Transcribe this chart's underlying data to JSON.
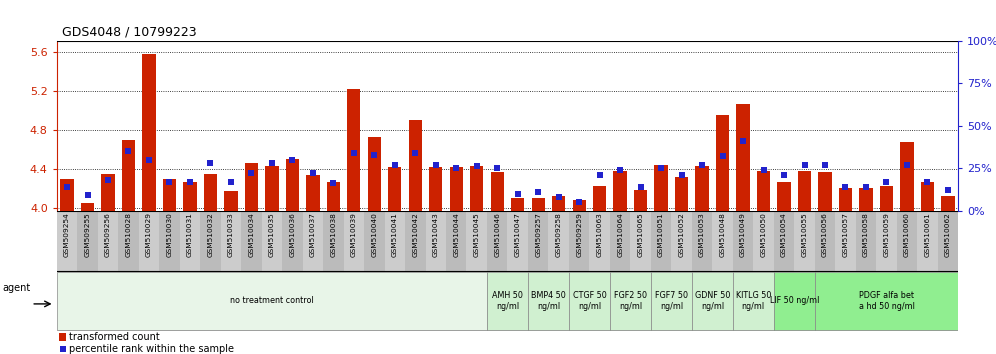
{
  "title": "GDS4048 / 10799223",
  "samples": [
    "GSM509254",
    "GSM509255",
    "GSM509256",
    "GSM510028",
    "GSM510029",
    "GSM510030",
    "GSM510031",
    "GSM510032",
    "GSM510033",
    "GSM510034",
    "GSM510035",
    "GSM510036",
    "GSM510037",
    "GSM510038",
    "GSM510039",
    "GSM510040",
    "GSM510041",
    "GSM510042",
    "GSM510043",
    "GSM510044",
    "GSM510045",
    "GSM510046",
    "GSM510047",
    "GSM509257",
    "GSM509258",
    "GSM509259",
    "GSM510063",
    "GSM510064",
    "GSM510065",
    "GSM510051",
    "GSM510052",
    "GSM510053",
    "GSM510048",
    "GSM510049",
    "GSM510050",
    "GSM510054",
    "GSM510055",
    "GSM510056",
    "GSM510057",
    "GSM510058",
    "GSM510059",
    "GSM510060",
    "GSM510061",
    "GSM510062"
  ],
  "red_values": [
    4.3,
    4.05,
    4.35,
    4.7,
    5.58,
    4.3,
    4.27,
    4.35,
    4.17,
    4.46,
    4.43,
    4.5,
    4.34,
    4.27,
    5.22,
    4.73,
    4.42,
    4.9,
    4.42,
    4.42,
    4.43,
    4.37,
    4.1,
    4.1,
    4.12,
    4.08,
    4.22,
    4.38,
    4.18,
    4.44,
    4.32,
    4.43,
    4.95,
    5.07,
    4.38,
    4.27,
    4.38,
    4.37,
    4.2,
    4.2,
    4.22,
    4.68,
    4.27,
    4.12
  ],
  "blue_values": [
    14,
    9,
    18,
    35,
    30,
    17,
    17,
    28,
    17,
    22,
    28,
    30,
    22,
    16,
    34,
    33,
    27,
    34,
    27,
    25,
    26,
    25,
    10,
    11,
    8,
    5,
    21,
    24,
    14,
    25,
    21,
    27,
    32,
    41,
    24,
    21,
    27,
    27,
    14,
    14,
    17,
    27,
    17,
    12
  ],
  "groups": [
    {
      "label": "no treatment control",
      "start": 0,
      "end": 21,
      "color": "#e8f5e8"
    },
    {
      "label": "AMH 50\nng/ml",
      "start": 21,
      "end": 23,
      "color": "#d0f0d0"
    },
    {
      "label": "BMP4 50\nng/ml",
      "start": 23,
      "end": 25,
      "color": "#d0f0d0"
    },
    {
      "label": "CTGF 50\nng/ml",
      "start": 25,
      "end": 27,
      "color": "#d0f0d0"
    },
    {
      "label": "FGF2 50\nng/ml",
      "start": 27,
      "end": 29,
      "color": "#d0f0d0"
    },
    {
      "label": "FGF7 50\nng/ml",
      "start": 29,
      "end": 31,
      "color": "#d0f0d0"
    },
    {
      "label": "GDNF 50\nng/ml",
      "start": 31,
      "end": 33,
      "color": "#d0f0d0"
    },
    {
      "label": "KITLG 50\nng/ml",
      "start": 33,
      "end": 35,
      "color": "#d0f0d0"
    },
    {
      "label": "LIF 50 ng/ml",
      "start": 35,
      "end": 37,
      "color": "#90ee90"
    },
    {
      "label": "PDGF alfa bet\na hd 50 ng/ml",
      "start": 37,
      "end": 44,
      "color": "#90ee90"
    }
  ],
  "ylim_left": [
    3.97,
    5.72
  ],
  "yticks_left": [
    4.0,
    4.4,
    4.8,
    5.2,
    5.6
  ],
  "ylim_right": [
    0,
    100
  ],
  "yticks_right": [
    0,
    25,
    50,
    75,
    100
  ],
  "bar_color": "#cc2200",
  "blue_color": "#2222cc",
  "left_axis_color": "#cc2200",
  "right_axis_color": "#2222cc",
  "bar_width": 0.65,
  "blue_marker_size": 4
}
